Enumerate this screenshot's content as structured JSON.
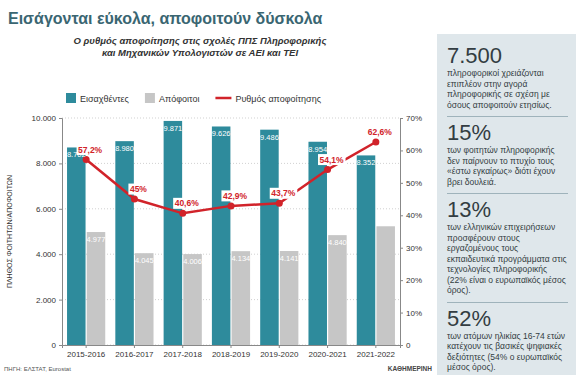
{
  "chart_data": {
    "type": "bar",
    "title": "Εισάγονται εύκολα, αποφοιτούν δύσκολα",
    "subtitle": [
      "Ο ρυθμός αποφοίτησης στις σχολές ΠΠΣ Πληροφορικής",
      "και Μηχανικών Υπολογιστών σε ΑΕΙ και ΤΕΙ"
    ],
    "y_label": "ΠΛΗΘΟΣ ΦΟΙΤΗΤΩΝ/ΑΠΟΦΟΙΤΩΝ",
    "categories": [
      "2015-2016",
      "2016-2017",
      "2017-2018",
      "2018-2019",
      "2019-2020",
      "2020-2021",
      "2021-2022"
    ],
    "series": [
      {
        "name": "Εισαχθέντες",
        "type": "bar",
        "color": "#2e8b9c",
        "values": [
          8702,
          8980,
          9871,
          9626,
          9486,
          8954,
          8352
        ],
        "value_labels": [
          "8.702",
          "8.980",
          "9.871",
          "9.626",
          "9.486",
          "8.954",
          "8.352"
        ]
      },
      {
        "name": "Απόφοιτοι",
        "type": "bar",
        "color": "#c6c6c6",
        "values": [
          4977,
          4045,
          4006,
          4134,
          4141,
          4840,
          5230
        ],
        "value_labels": [
          "4.977",
          "4.045",
          "4.006",
          "4.134",
          "4.141",
          "4.840",
          null
        ]
      },
      {
        "name": "Ρυθμός αποφοίτησης",
        "type": "line",
        "axis": "y2",
        "color": "#d1232a",
        "marker": "circle",
        "values": [
          57.2,
          45,
          40.6,
          42.9,
          43.7,
          54.1,
          62.6
        ],
        "value_labels": [
          "57,2%",
          "45%",
          "40,6%",
          "42,9%",
          "43,7%",
          "54,1%",
          "62,6%"
        ]
      }
    ],
    "ylim": [
      0,
      10000
    ],
    "yticks": [
      0,
      {
        "value": 2000,
        "label": "2.000"
      },
      {
        "value": 4000,
        "label": "4.000"
      },
      {
        "value": 6000,
        "label": "6.000"
      },
      {
        "value": 8000,
        "label": "8.000"
      },
      {
        "value": 10000,
        "label": "10.000"
      }
    ],
    "y2lim": [
      0,
      70
    ],
    "y2ticks": [
      0,
      {
        "value": 10,
        "label": "10%"
      },
      {
        "value": 20,
        "label": "20%"
      },
      {
        "value": 30,
        "label": "30%"
      },
      {
        "value": 40,
        "label": "40%"
      },
      {
        "value": 50,
        "label": "50%"
      },
      {
        "value": 60,
        "label": "60%"
      },
      {
        "value": 70,
        "label": "70%"
      }
    ],
    "grid": true,
    "legend": "top-left",
    "data_labels": true,
    "source": "ΠΗΓΗ: ΕΛΣΤΑΤ, Eurostat"
  },
  "facts": [
    {
      "figure": "7.500",
      "text": "πληροφορικοί χρειάζονται επιπλέον στην αγορά πληροφορικής σε σχέση με όσους αποφοιτούν ετησίως."
    },
    {
      "figure": "15%",
      "text": "των φοιτητών πληροφορικής δεν παίρνουν το πτυχίο τους «έστω εγκαίρως» διότι έχουν βρει δουλειά."
    },
    {
      "figure": "13%",
      "text": "των ελληνικών επιχειρήσεων προσφέρουν στους εργαζομένους τους εκπαιδευτικά προγράμματα στις τεχνολογίες πληροφορικής (22% είναι ο ευρωπαϊκός μέσος όρος)."
    },
    {
      "figure": "52%",
      "text": "των ατόμων ηλικίας 16-74 ετών κατέχουν τις βασικές ψηφιακές δεξιότητες (54% ο ευρωπαϊκός μέσος όρος)."
    }
  ],
  "credit": "ΚΑΘΗΜΕΡΙΝΗ"
}
